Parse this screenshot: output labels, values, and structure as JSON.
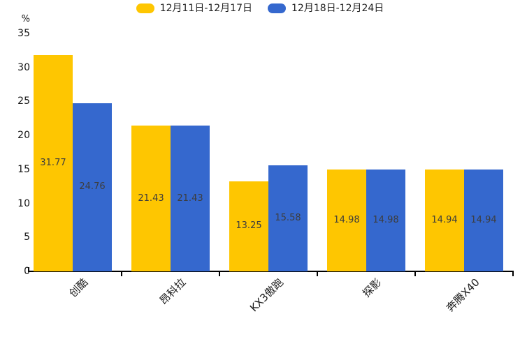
{
  "chart_data": {
    "type": "bar",
    "title": "",
    "xlabel": "",
    "ylabel": "%",
    "categories": [
      "创酷",
      "昂科拉",
      "KX3傲跑",
      "探影",
      "奔腾X40"
    ],
    "series": [
      {
        "name": "12月11日-12月17日",
        "color": "#FEC601",
        "values": [
          31.77,
          21.43,
          13.25,
          14.98,
          14.94
        ]
      },
      {
        "name": "12月18日-12月24日",
        "color": "#3568CE",
        "values": [
          24.76,
          21.43,
          15.58,
          14.98,
          14.94
        ]
      }
    ],
    "ylim": [
      0,
      35
    ],
    "yticks": [
      0,
      5,
      10,
      15,
      20,
      25,
      30,
      35
    ],
    "grid": false,
    "legend_position": "top-center",
    "value_labels": "inside-center",
    "xtick_rotation": 45,
    "axis_color": "#000000",
    "value_label_color": "#3d3d3d"
  }
}
